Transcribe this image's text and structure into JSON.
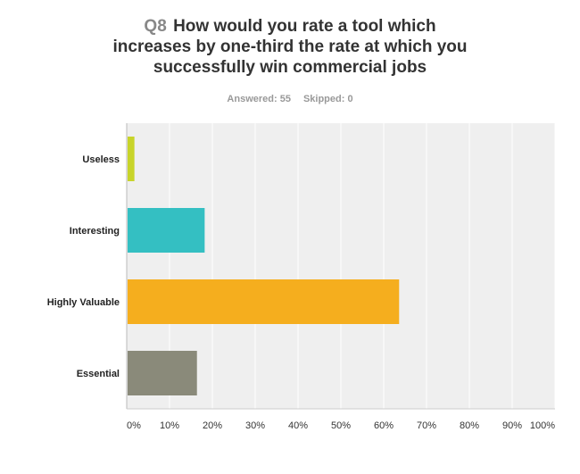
{
  "question": {
    "number": "Q8",
    "text_lines": [
      "How would you rate a tool which",
      "increases by one-third the rate at which you",
      "successfully win commercial jobs"
    ]
  },
  "meta": {
    "answered": "Answered: 55",
    "skipped": "Skipped: 0"
  },
  "chart_data": {
    "type": "bar",
    "orientation": "horizontal",
    "categories": [
      "Useless",
      "Interesting",
      "Highly Valuable",
      "Essential"
    ],
    "values": [
      1.8,
      18.2,
      63.6,
      16.4
    ],
    "xlim": [
      0,
      100
    ],
    "x_ticks": [
      "0%",
      "10%",
      "20%",
      "30%",
      "40%",
      "50%",
      "60%",
      "70%",
      "80%",
      "90%",
      "100%"
    ],
    "grid": true,
    "colors": [
      "#c8d42a",
      "#34bfc2",
      "#f5ae1e",
      "#8a8a7a"
    ],
    "plot_background": "#efefef"
  }
}
